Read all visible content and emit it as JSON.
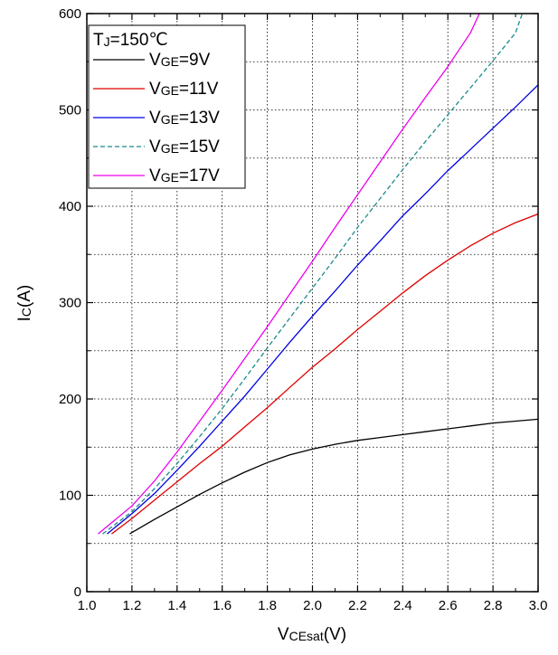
{
  "chart_data": {
    "type": "line",
    "xlim": [
      1.0,
      3.0
    ],
    "ylim": [
      0,
      600
    ],
    "x_ticks": [
      "1.0",
      "1.2",
      "1.4",
      "1.6",
      "1.8",
      "2.0",
      "2.2",
      "2.4",
      "2.6",
      "2.8",
      "3.0"
    ],
    "y_ticks": [
      "0",
      "100",
      "200",
      "300",
      "400",
      "500",
      "600"
    ],
    "xlabel": {
      "main": "V",
      "sub": "CEsat",
      "tail": "(V)"
    },
    "ylabel": {
      "main": "I",
      "sub": "C",
      "tail": "(A)"
    },
    "grid": true,
    "legend": {
      "placement": "top-left",
      "title": {
        "main": "T",
        "sub": "J",
        "tail": "=150℃"
      }
    },
    "series": [
      {
        "name": "VGE=9V",
        "label_main": "V",
        "label_sub": "GE",
        "label_tail": "=9V",
        "color": "#000000",
        "dash": "solid",
        "points": [
          [
            1.19,
            60
          ],
          [
            1.3,
            75
          ],
          [
            1.4,
            88
          ],
          [
            1.5,
            101
          ],
          [
            1.6,
            113
          ],
          [
            1.7,
            124
          ],
          [
            1.8,
            134
          ],
          [
            1.9,
            142
          ],
          [
            2.0,
            148
          ],
          [
            2.1,
            153
          ],
          [
            2.2,
            157
          ],
          [
            2.3,
            160
          ],
          [
            2.4,
            163
          ],
          [
            2.5,
            166
          ],
          [
            2.6,
            169
          ],
          [
            2.7,
            172
          ],
          [
            2.8,
            175
          ],
          [
            2.9,
            177
          ],
          [
            3.0,
            179
          ]
        ]
      },
      {
        "name": "VGE=11V",
        "label_main": "V",
        "label_sub": "GE",
        "label_tail": "=11V",
        "color": "#e00000",
        "dash": "solid",
        "points": [
          [
            1.11,
            60
          ],
          [
            1.2,
            76
          ],
          [
            1.3,
            95
          ],
          [
            1.4,
            114
          ],
          [
            1.5,
            133
          ],
          [
            1.6,
            151
          ],
          [
            1.7,
            171
          ],
          [
            1.8,
            191
          ],
          [
            1.9,
            212
          ],
          [
            2.0,
            233
          ],
          [
            2.1,
            252
          ],
          [
            2.2,
            272
          ],
          [
            2.3,
            291
          ],
          [
            2.4,
            310
          ],
          [
            2.5,
            328
          ],
          [
            2.6,
            344
          ],
          [
            2.7,
            359
          ],
          [
            2.8,
            372
          ],
          [
            2.9,
            383
          ],
          [
            3.0,
            392
          ]
        ]
      },
      {
        "name": "VGE=13V",
        "label_main": "V",
        "label_sub": "GE",
        "label_tail": "=13V",
        "color": "#0000e0",
        "dash": "solid",
        "points": [
          [
            1.09,
            60
          ],
          [
            1.2,
            81
          ],
          [
            1.3,
            102
          ],
          [
            1.4,
            126
          ],
          [
            1.5,
            151
          ],
          [
            1.6,
            177
          ],
          [
            1.7,
            203
          ],
          [
            1.8,
            231
          ],
          [
            1.9,
            259
          ],
          [
            2.0,
            286
          ],
          [
            2.1,
            312
          ],
          [
            2.2,
            339
          ],
          [
            2.3,
            364
          ],
          [
            2.4,
            390
          ],
          [
            2.5,
            413
          ],
          [
            2.6,
            437
          ],
          [
            2.7,
            459
          ],
          [
            2.8,
            481
          ],
          [
            2.9,
            503
          ],
          [
            3.0,
            526
          ]
        ]
      },
      {
        "name": "VGE=15V",
        "label_main": "V",
        "label_sub": "GE",
        "label_tail": "=15V",
        "color": "#1a8a8a",
        "dash": "dashed",
        "points": [
          [
            1.07,
            60
          ],
          [
            1.2,
            83
          ],
          [
            1.3,
            107
          ],
          [
            1.4,
            133
          ],
          [
            1.5,
            161
          ],
          [
            1.6,
            190
          ],
          [
            1.7,
            221
          ],
          [
            1.8,
            253
          ],
          [
            1.9,
            284
          ],
          [
            2.0,
            315
          ],
          [
            2.1,
            346
          ],
          [
            2.2,
            378
          ],
          [
            2.3,
            408
          ],
          [
            2.4,
            438
          ],
          [
            2.5,
            467
          ],
          [
            2.6,
            495
          ],
          [
            2.7,
            523
          ],
          [
            2.8,
            551
          ],
          [
            2.9,
            580
          ],
          [
            2.93,
            600
          ]
        ]
      },
      {
        "name": "VGE=17V",
        "label_main": "V",
        "label_sub": "GE",
        "label_tail": "=17V",
        "color": "#ee00ee",
        "dash": "solid",
        "points": [
          [
            1.05,
            60
          ],
          [
            1.2,
            89
          ],
          [
            1.3,
            115
          ],
          [
            1.4,
            145
          ],
          [
            1.5,
            177
          ],
          [
            1.6,
            209
          ],
          [
            1.7,
            242
          ],
          [
            1.8,
            275
          ],
          [
            1.9,
            309
          ],
          [
            2.0,
            343
          ],
          [
            2.1,
            378
          ],
          [
            2.2,
            412
          ],
          [
            2.3,
            446
          ],
          [
            2.4,
            480
          ],
          [
            2.5,
            513
          ],
          [
            2.6,
            545
          ],
          [
            2.7,
            580
          ],
          [
            2.74,
            600
          ]
        ]
      }
    ]
  }
}
